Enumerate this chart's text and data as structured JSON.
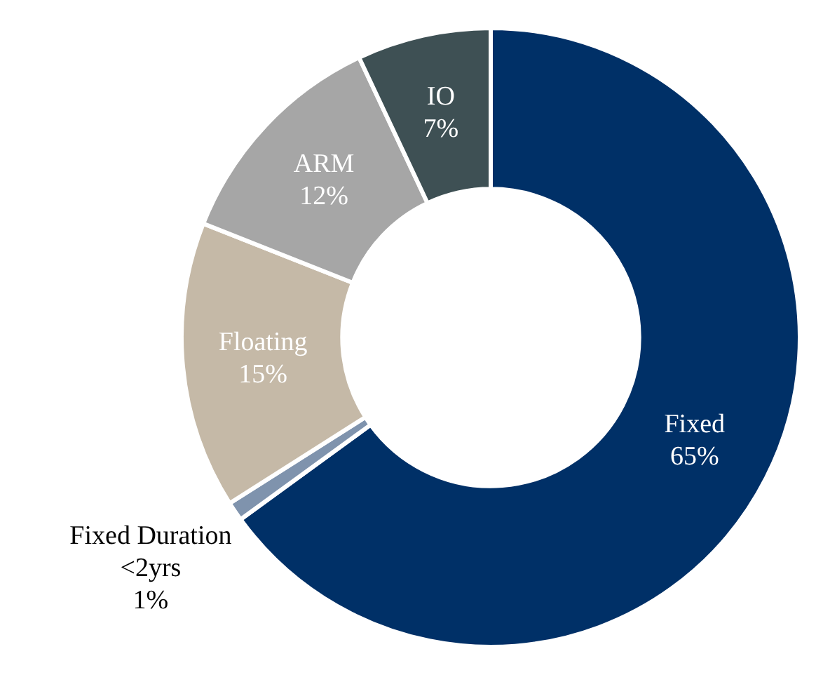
{
  "chart_data": {
    "type": "donut",
    "categories": [
      "Fixed",
      "Fixed Duration <2yrs",
      "Floating",
      "ARM",
      "IO"
    ],
    "values": [
      65,
      1,
      15,
      12,
      7
    ],
    "value_labels": [
      "65%",
      "1%",
      "15%",
      "12%",
      "7%"
    ],
    "colors": [
      "#003067",
      "#7f93ad",
      "#c5b9a7",
      "#a6a6a6",
      "#3e5054"
    ],
    "legend": false
  }
}
